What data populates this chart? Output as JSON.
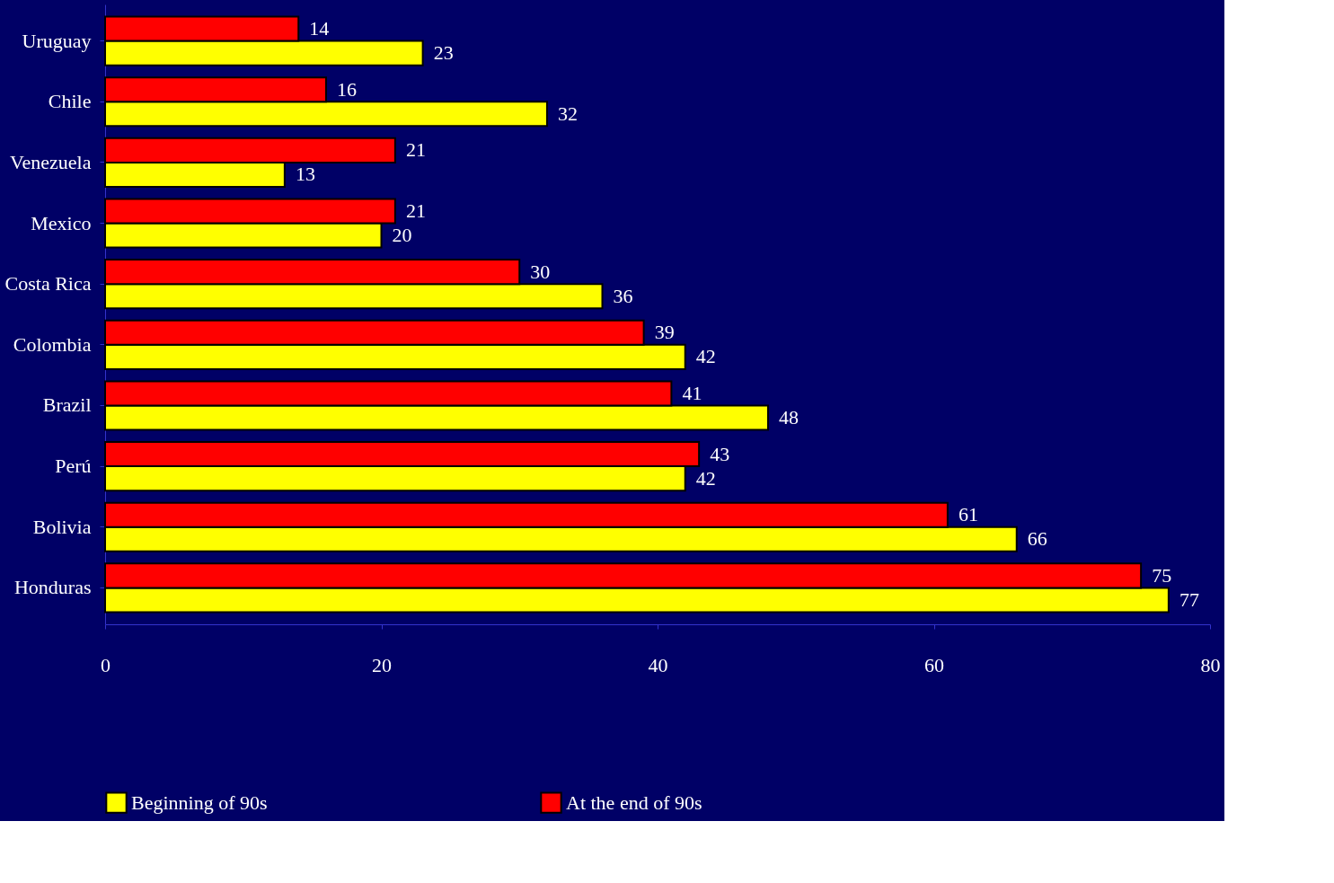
{
  "chart_data": {
    "type": "bar",
    "orientation": "horizontal",
    "categories": [
      "Uruguay",
      "Chile",
      "Venezuela",
      "Mexico",
      "Costa Rica",
      "Colombia",
      "Brazil",
      "Perú",
      "Bolivia",
      "Honduras"
    ],
    "series": [
      {
        "name": "Beginning of 90s",
        "color": "#ffff00",
        "values": [
          23,
          32,
          13,
          20,
          36,
          42,
          48,
          42,
          66,
          77
        ]
      },
      {
        "name": "At the end of 90s",
        "color": "#ff0000",
        "values": [
          14,
          16,
          21,
          21,
          30,
          39,
          41,
          43,
          61,
          75
        ]
      }
    ],
    "xlim": [
      0,
      80
    ],
    "xticks": [
      0,
      20,
      40,
      60,
      80
    ],
    "data_labels": true,
    "grid": false,
    "legend": "bottom"
  }
}
